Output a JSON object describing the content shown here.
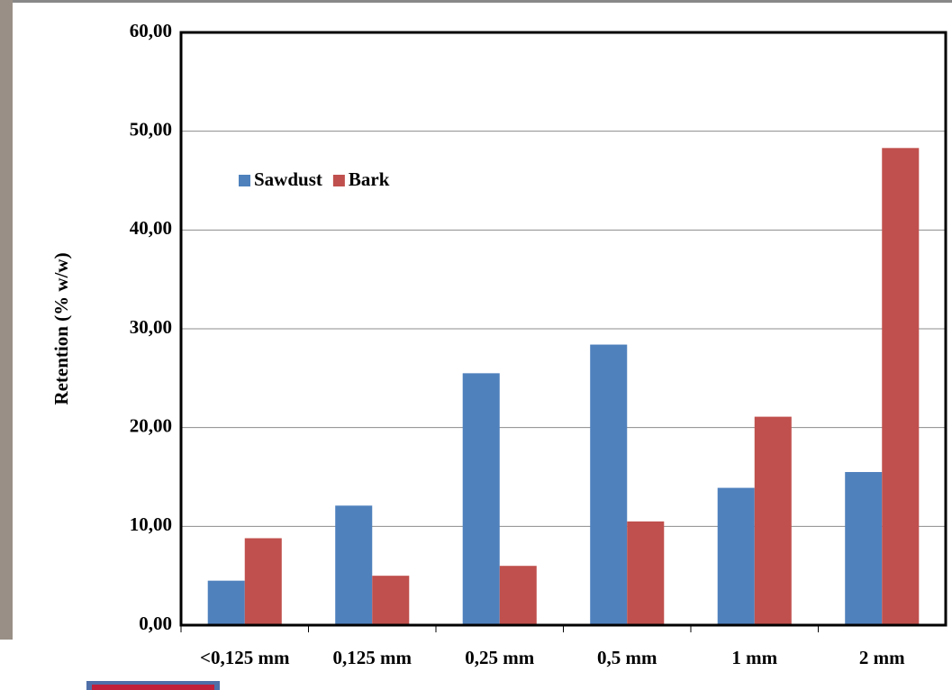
{
  "chart_data": {
    "type": "bar",
    "y_label": "Retention (% w/w)",
    "categories": [
      "<0,125 mm",
      "0,125 mm",
      "0,25 mm",
      "0,5 mm",
      "1 mm",
      "2 mm"
    ],
    "series": [
      {
        "name": "Sawdust",
        "color": "#4f81bd",
        "values": [
          4.5,
          12.1,
          25.5,
          28.4,
          13.9,
          15.5
        ]
      },
      {
        "name": "Bark",
        "color": "#c0504d",
        "values": [
          8.8,
          5.0,
          6.0,
          10.5,
          21.1,
          48.3
        ]
      }
    ],
    "ylim": [
      0,
      60
    ],
    "yticks": [
      {
        "value": 0,
        "label": "0,00"
      },
      {
        "value": 10,
        "label": "10,00"
      },
      {
        "value": 20,
        "label": "20,00"
      },
      {
        "value": 30,
        "label": "30,00"
      },
      {
        "value": 40,
        "label": "40,00"
      },
      {
        "value": 50,
        "label": "50,00"
      },
      {
        "value": 60,
        "label": "60,00"
      }
    ],
    "grid": true
  }
}
